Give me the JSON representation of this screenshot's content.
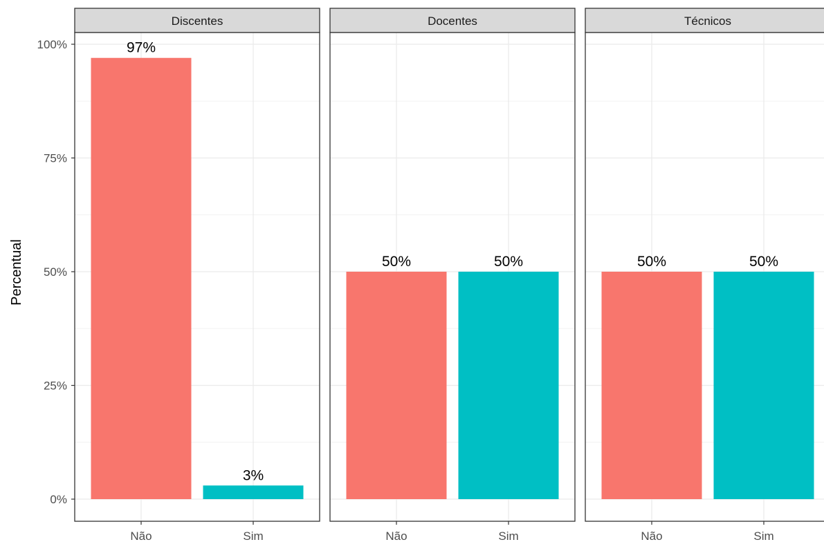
{
  "chart_data": {
    "type": "bar",
    "ylabel": "Percentual",
    "xlabel": "",
    "ylim": [
      0,
      100
    ],
    "y_ticks": [
      0,
      25,
      50,
      75,
      100
    ],
    "y_tick_labels": [
      "0%",
      "25%",
      "50%",
      "75%",
      "100%"
    ],
    "categories": [
      "Não",
      "Sim"
    ],
    "colors": {
      "Não": "#F8766D",
      "Sim": "#00BFC4"
    },
    "grid": true,
    "panels": [
      {
        "name": "Discentes",
        "values": [
          97,
          3
        ],
        "labels": [
          "97%",
          "3%"
        ]
      },
      {
        "name": "Docentes",
        "values": [
          50,
          50
        ],
        "labels": [
          "50%",
          "50%"
        ]
      },
      {
        "name": "Técnicos",
        "values": [
          50,
          50
        ],
        "labels": [
          "50%",
          "50%"
        ]
      }
    ]
  }
}
